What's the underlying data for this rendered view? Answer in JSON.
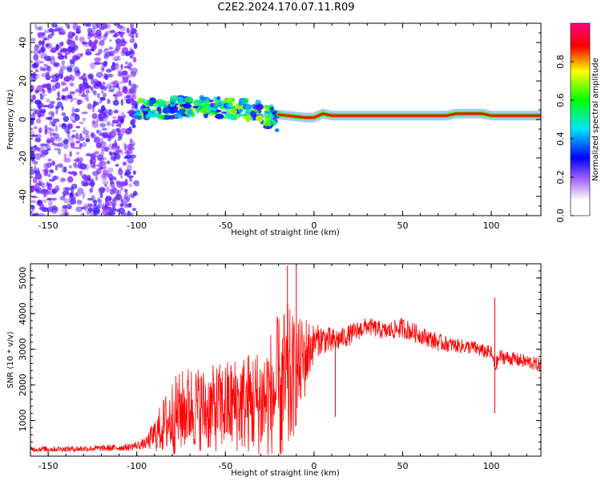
{
  "figure_title": "C2E2.2024.170.07.11.R09",
  "chart_data": [
    {
      "type": "heatmap",
      "xlabel": "Height of straight line (km)",
      "ylabel": "Frequency (Hz)",
      "xlim": [
        -160,
        128
      ],
      "ylim": [
        -50,
        50
      ],
      "xticks": [
        -150,
        -100,
        -50,
        0,
        50,
        100
      ],
      "yticks": [
        -40,
        -20,
        0,
        20,
        40
      ],
      "colorbar": {
        "label": "Normalized spectral amplitude",
        "range": [
          0,
          1
        ],
        "ticks": [
          0.0,
          0.2,
          0.4,
          0.6,
          0.8
        ],
        "tick_labels": [
          "0.0",
          "0.2",
          "0.4",
          "0.6",
          "0.8"
        ],
        "colormap": [
          "#ffffff",
          "#9b30ff",
          "#0000ff",
          "#00e5ff",
          "#00ff00",
          "#ffff00",
          "#ff0000",
          "#ff0080"
        ]
      },
      "regions": [
        {
          "x_range": [
            -160,
            -100
          ],
          "frequency_range": [
            -50,
            50
          ],
          "description": "broadband noise",
          "typical_amplitude": 0.1
        },
        {
          "x_range": [
            -100,
            -20
          ],
          "frequency_range": [
            -15,
            12
          ],
          "description": "scattered signal",
          "typical_amplitude": 0.4
        },
        {
          "x_range": [
            -20,
            128
          ],
          "frequency_range": [
            0,
            4
          ],
          "description": "narrow tone",
          "typical_amplitude": 0.9
        }
      ],
      "ridge": {
        "x": [
          -100,
          -80,
          -60,
          -40,
          -25,
          -15,
          -5,
          0,
          5,
          10,
          20,
          40,
          60,
          75,
          80,
          95,
          100,
          110,
          128
        ],
        "frequency": [
          5,
          6,
          7,
          5,
          3,
          2,
          1,
          1,
          3,
          2,
          2,
          2,
          2,
          2,
          3,
          3,
          2,
          2,
          2
        ]
      }
    },
    {
      "type": "line",
      "xlabel": "Height of straight line (km)",
      "ylabel": "SNR (10 * v/v)",
      "xlim": [
        -160,
        128
      ],
      "ylim": [
        0,
        5400
      ],
      "xticks": [
        -150,
        -100,
        -50,
        0,
        50,
        100
      ],
      "yticks": [
        1000,
        2000,
        3000,
        4000,
        5000
      ],
      "series": [
        {
          "color": "#ff0000",
          "x": [
            -160,
            -140,
            -120,
            -105,
            -95,
            -88,
            -80,
            -70,
            -60,
            -50,
            -40,
            -30,
            -25,
            -20,
            -15,
            -12,
            -10,
            -5,
            0,
            5,
            10,
            15,
            20,
            30,
            40,
            50,
            60,
            70,
            80,
            90,
            95,
            100,
            102,
            105,
            110,
            120,
            128
          ],
          "mean": [
            200,
            200,
            220,
            250,
            350,
            700,
            1100,
            1400,
            1300,
            1400,
            1500,
            1500,
            1700,
            1800,
            1900,
            2200,
            2300,
            2800,
            3200,
            3300,
            3200,
            3300,
            3400,
            3650,
            3500,
            3600,
            3400,
            3200,
            3100,
            3050,
            2950,
            2900,
            2500,
            2800,
            2750,
            2650,
            2550
          ],
          "spread": [
            80,
            80,
            90,
            100,
            150,
            600,
            1100,
            1200,
            1200,
            1300,
            1400,
            1600,
            1800,
            2200,
            2400,
            1800,
            1500,
            1200,
            500,
            400,
            400,
            300,
            300,
            250,
            250,
            300,
            250,
            250,
            200,
            200,
            200,
            200,
            200,
            200,
            200,
            200,
            200
          ]
        }
      ],
      "spikes": [
        {
          "x": 12,
          "y": 1100
        },
        {
          "x": 102,
          "y": 1200
        },
        {
          "x": 102,
          "y": 4450
        },
        {
          "x": -15,
          "y": 5350
        },
        {
          "x": -10,
          "y": 5350
        }
      ]
    }
  ]
}
